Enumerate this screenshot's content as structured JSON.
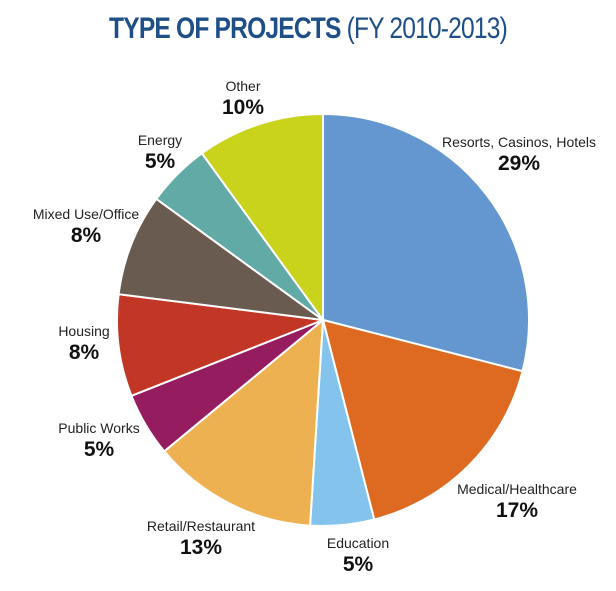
{
  "title": {
    "main": "TYPE OF PROJECTS",
    "sub": "(FY 2010-2013)"
  },
  "chart_data": {
    "type": "pie",
    "title": "TYPE OF PROJECTS (FY 2010-2013)",
    "unit": "%",
    "start": "12 o'clock, clockwise",
    "slices": [
      {
        "label": "Resorts, Casinos, Hotels",
        "value": 29,
        "display": "29%",
        "color": "#6497cf"
      },
      {
        "label": "Medical/Healthcare",
        "value": 17,
        "display": "17%",
        "color": "#dd6a20"
      },
      {
        "label": "Education",
        "value": 5,
        "display": "5%",
        "color": "#84c3ec"
      },
      {
        "label": "Retail/Restaurant",
        "value": 13,
        "display": "13%",
        "color": "#eeb152"
      },
      {
        "label": "Public Works",
        "value": 5,
        "display": "5%",
        "color": "#951c5f"
      },
      {
        "label": "Housing",
        "value": 8,
        "display": "8%",
        "color": "#c23626"
      },
      {
        "label": "Mixed Use/Office",
        "value": 8,
        "display": "8%",
        "color": "#695b50"
      },
      {
        "label": "Energy",
        "value": 5,
        "display": "5%",
        "color": "#62aaa5"
      },
      {
        "label": "Other",
        "value": 10,
        "display": "10%",
        "color": "#c9d31b"
      }
    ]
  }
}
